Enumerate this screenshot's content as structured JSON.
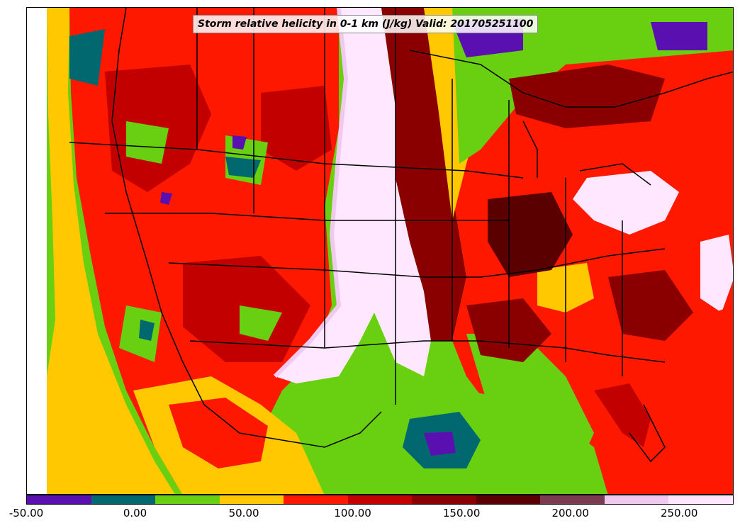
{
  "title": "Storm relative helicity in 0-1 km (J/kg) Valid: 201705251100",
  "colorbar": {
    "ticks": [
      "-50.00",
      "0.00",
      "50.00",
      "100.00",
      "150.00",
      "200.00",
      "250.00"
    ],
    "range": [
      -50,
      275
    ],
    "colors": [
      "#5a10b0",
      "#00686e",
      "#68d010",
      "#ffc800",
      "#ff1800",
      "#c20000",
      "#8a0000",
      "#5a0000",
      "#7a3a50",
      "#f0c8f0",
      "#ffe8ff"
    ]
  },
  "map_colors": {
    "ocean_pacific": "#68d010",
    "ocean_gulf": "#68d010",
    "border_lines": "#000000",
    "missing": "#ffffff"
  }
}
